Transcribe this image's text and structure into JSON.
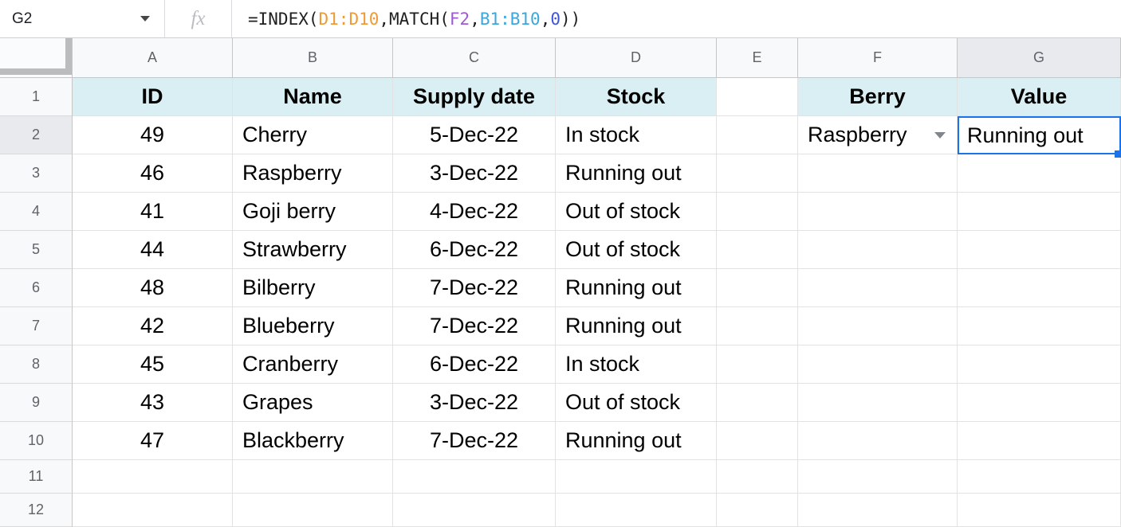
{
  "formula_bar": {
    "name_box_value": "G2",
    "fx_label": "fx",
    "tokens": [
      {
        "text": "=INDEX(",
        "color": "#1F1F1F"
      },
      {
        "text": "D1:D10",
        "color": "#EE9B35"
      },
      {
        "text": ",MATCH(",
        "color": "#1F1F1F"
      },
      {
        "text": "F2",
        "color": "#9D5BD2"
      },
      {
        "text": ",",
        "color": "#1F1F1F"
      },
      {
        "text": "B1:B10",
        "color": "#3CA7DB"
      },
      {
        "text": ",",
        "color": "#1F1F1F"
      },
      {
        "text": "0",
        "color": "#4153D9"
      },
      {
        "text": "))",
        "color": "#1F1F1F"
      }
    ]
  },
  "grid": {
    "selected_cell": "G2",
    "column_letters": {
      "a": "A",
      "b": "B",
      "c": "C",
      "d": "D",
      "e": "E",
      "f": "F",
      "g": "G"
    },
    "header_row": {
      "num": "1",
      "a": "ID",
      "b": "Name",
      "c": "Supply date",
      "d": "Stock",
      "e": "",
      "f": "Berry",
      "g": "Value"
    },
    "rows": [
      {
        "num": "2",
        "a": "49",
        "b": "Cherry",
        "c": "5-Dec-22",
        "d": "In stock",
        "e": "",
        "f": "Raspberry",
        "g": "Running out"
      },
      {
        "num": "3",
        "a": "46",
        "b": "Raspberry",
        "c": "3-Dec-22",
        "d": "Running out",
        "e": "",
        "f": "",
        "g": ""
      },
      {
        "num": "4",
        "a": "41",
        "b": "Goji berry",
        "c": "4-Dec-22",
        "d": "Out of stock",
        "e": "",
        "f": "",
        "g": ""
      },
      {
        "num": "5",
        "a": "44",
        "b": "Strawberry",
        "c": "6-Dec-22",
        "d": "Out of stock",
        "e": "",
        "f": "",
        "g": ""
      },
      {
        "num": "6",
        "a": "48",
        "b": "Bilberry",
        "c": "7-Dec-22",
        "d": "Running out",
        "e": "",
        "f": "",
        "g": ""
      },
      {
        "num": "7",
        "a": "42",
        "b": "Blueberry",
        "c": "7-Dec-22",
        "d": "Running out",
        "e": "",
        "f": "",
        "g": ""
      },
      {
        "num": "8",
        "a": "45",
        "b": "Cranberry",
        "c": "6-Dec-22",
        "d": "In stock",
        "e": "",
        "f": "",
        "g": ""
      },
      {
        "num": "9",
        "a": "43",
        "b": "Grapes",
        "c": "3-Dec-22",
        "d": "Out of stock",
        "e": "",
        "f": "",
        "g": ""
      },
      {
        "num": "10",
        "a": "47",
        "b": "Blackberry",
        "c": "7-Dec-22",
        "d": "Running out",
        "e": "",
        "f": "",
        "g": ""
      },
      {
        "num": "11",
        "a": "",
        "b": "",
        "c": "",
        "d": "",
        "e": "",
        "f": "",
        "g": ""
      },
      {
        "num": "12",
        "a": "",
        "b": "",
        "c": "",
        "d": "",
        "e": "",
        "f": "",
        "g": ""
      }
    ]
  },
  "colors": {
    "selection_blue": "#1A73E8",
    "table_header_fill": "#D9EFF3",
    "header_gray": "#F8F9FA",
    "selected_header_gray": "#E8EAED"
  }
}
